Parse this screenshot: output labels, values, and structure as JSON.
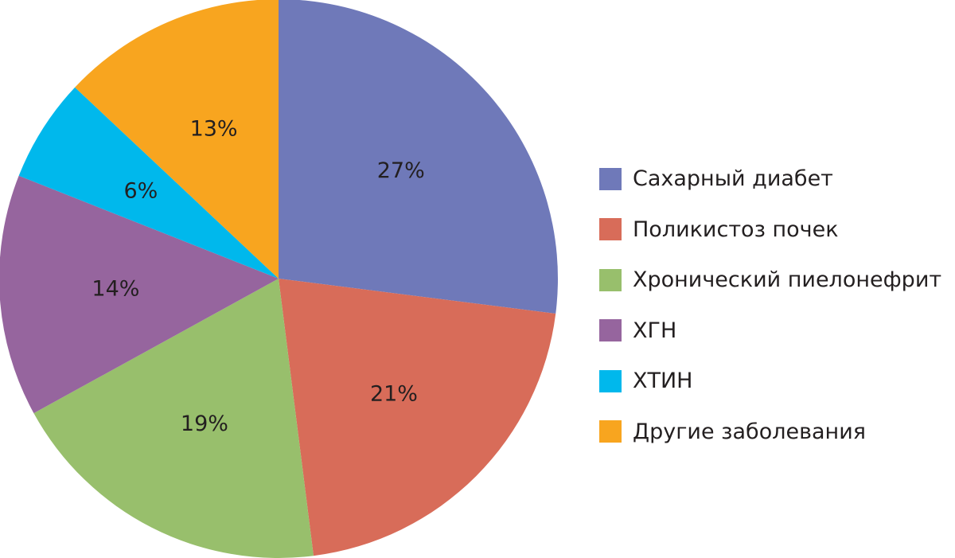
{
  "chart_data": {
    "type": "pie",
    "categories": [
      "Сахарный диабет",
      "Поликистоз почек",
      "Хронический пиелонефрит",
      "ХГН",
      "ХТИН",
      "Другие заболевания"
    ],
    "values": [
      27,
      21,
      19,
      14,
      6,
      13
    ],
    "labels": [
      "27%",
      "21%",
      "19%",
      "14%",
      "6%",
      "13%"
    ],
    "colors": [
      "#6f79b9",
      "#d86c59",
      "#98bf6c",
      "#96659e",
      "#00b8ec",
      "#f8a51f"
    ],
    "legend_position": "right"
  }
}
